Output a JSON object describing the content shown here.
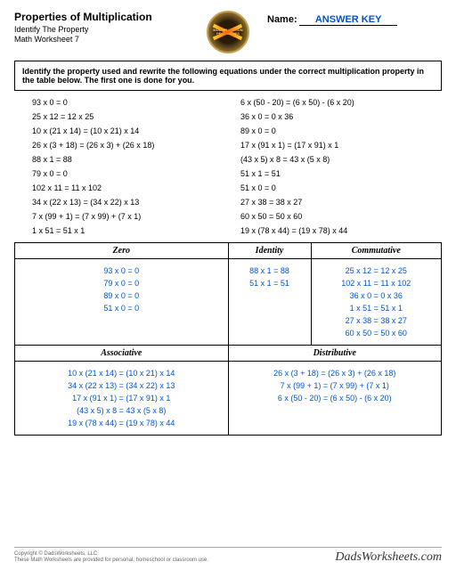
{
  "header": {
    "title": "Properties of Multiplication",
    "subtitle1": "Identify The Property",
    "subtitle2": "Math Worksheet 7",
    "name_label": "Name:",
    "answer_key": "ANSWER KEY",
    "logo_text": "MULTIPLICATION PROPERTIES"
  },
  "instructions": "Identify the property used and rewrite the following equations under the correct multiplication property in the table below.  The first one is done for you.",
  "equations": {
    "left": [
      "93 x 0 = 0",
      "25 x 12 = 12 x 25",
      "10 x (21 x 14) = (10 x 21) x 14",
      "26 x (3 + 18) = (26 x 3) + (26 x 18)",
      "88 x 1 = 88",
      "79 x 0 = 0",
      "102 x 11 = 11 x 102",
      "34 x (22 x 13) = (34 x 22) x 13",
      "7 x (99 + 1) = (7 x 99) + (7 x 1)",
      "1 x 51 = 51 x 1"
    ],
    "right": [
      "6 x (50 - 20) = (6 x 50) - (6 x 20)",
      "36 x 0 = 0 x 36",
      "89 x 0 = 0",
      "17 x (91 x 1) = (17 x 91) x 1",
      "(43 x 5) x 8 = 43 x (5 x 8)",
      "51 x 1 = 51",
      "51 x 0 = 0",
      "27 x 38 = 38 x 27",
      "60 x 50 = 50 x 60",
      "19 x (78 x 44) = (19 x 78) x 44"
    ]
  },
  "table": {
    "headers1": [
      "Zero",
      "Identity",
      "Commutative"
    ],
    "zero": [
      "93 x 0 = 0",
      "79 x 0 = 0",
      "89 x 0 = 0",
      "51 x 0 = 0"
    ],
    "identity": [
      "88 x 1 = 88",
      "51 x 1 = 51"
    ],
    "commutative": [
      "25 x 12 = 12 x 25",
      "102 x 11 = 11 x 102",
      "36 x 0 = 0 x 36",
      "1 x 51 = 51 x 1",
      "27 x 38 = 38 x 27",
      "60 x 50 = 50 x 60"
    ],
    "headers2": [
      "Associative",
      "Distributive"
    ],
    "associative": [
      "10 x (21 x 14) = (10 x 21) x 14",
      "34 x (22 x 13) = (34 x 22) x 13",
      "17 x (91 x 1) = (17 x 91) x 1",
      "(43 x 5) x 8 = 43 x (5 x 8)",
      "19 x (78 x 44) = (19 x 78) x 44"
    ],
    "distributive": [
      "26 x (3 + 18) = (26 x 3) + (26 x 18)",
      "7 x (99 + 1) = (7 x 99) + (7 x 1)",
      "6 x (50 - 20) = (6 x 50) - (6 x 20)"
    ]
  },
  "footer": {
    "copyright1": "Copyright © DadsWorksheets, LLC",
    "copyright2": "These Math Worksheets are provided for personal, homeschool or classroom use.",
    "brand": "DadsWorksheets.com"
  },
  "colors": {
    "answer_blue": "#0055cc",
    "text": "#000000",
    "footer_gray": "#666666"
  }
}
